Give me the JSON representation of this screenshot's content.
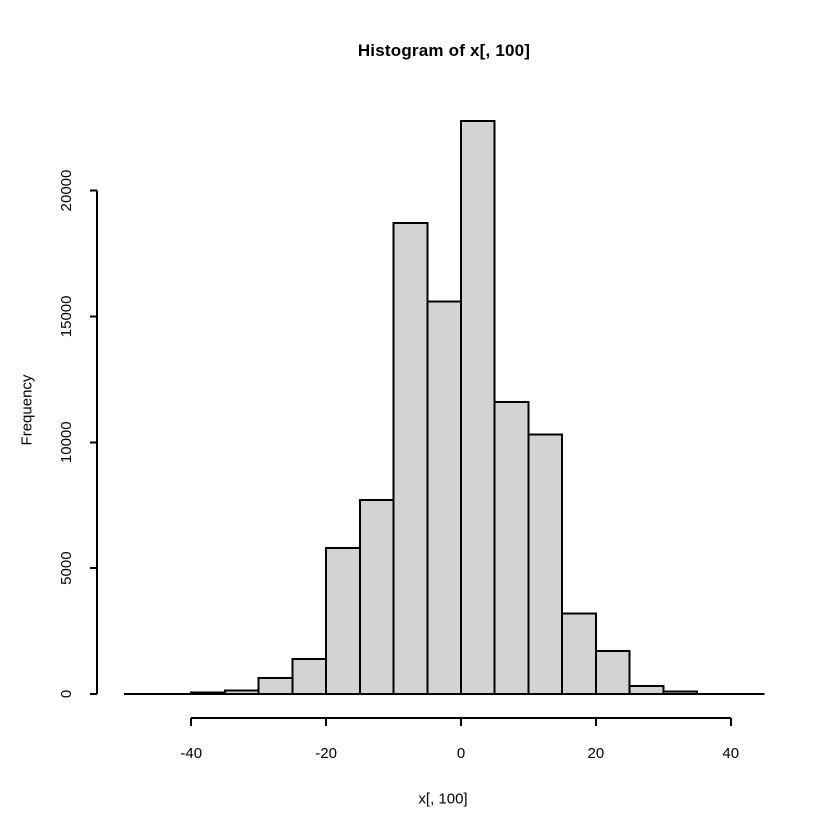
{
  "chart_data": {
    "type": "bar",
    "subtype": "histogram",
    "title": "Histogram of x[, 100]",
    "xlabel": "x[, 100]",
    "ylabel": "Frequency",
    "bin_edges": [
      -40,
      -35,
      -30,
      -25,
      -20,
      -15,
      -10,
      -5,
      0,
      5,
      10,
      15,
      20,
      25,
      30,
      35
    ],
    "counts": [
      60,
      130,
      640,
      1400,
      5800,
      7700,
      18700,
      15600,
      22760,
      11600,
      10300,
      3200,
      1700,
      320,
      90
    ],
    "x_tick_labels": [
      "-40",
      "-20",
      "0",
      "20",
      "40"
    ],
    "x_tick_values": [
      -40,
      -20,
      0,
      20,
      40
    ],
    "y_tick_labels": [
      "0",
      "5000",
      "10000",
      "15000",
      "20000"
    ],
    "y_tick_values": [
      0,
      5000,
      10000,
      15000,
      20000
    ],
    "baseline_extent": [
      -50,
      45
    ],
    "xlim": [
      -53.8,
      48.8
    ],
    "ylim": [
      0,
      22760
    ],
    "grid": false,
    "legend": false,
    "colors": {
      "bar_fill": "#d3d3d3",
      "bar_stroke": "#000000",
      "axis": "#000000",
      "background": "#ffffff",
      "text": "#000000"
    }
  }
}
